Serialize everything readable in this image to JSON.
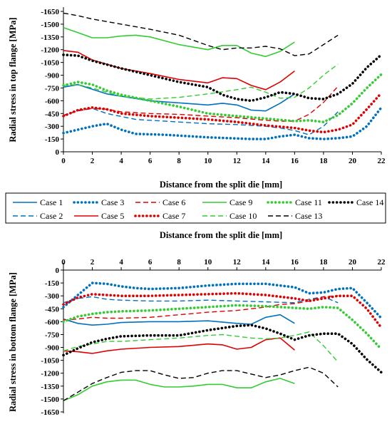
{
  "chart_data": [
    {
      "type": "line",
      "xlabel": "Distance from the split die [mm]",
      "ylabel": "Radial stress in top flange [MPa]",
      "xlim": [
        0,
        22
      ],
      "ylim": [
        0,
        -1650
      ],
      "xticks": [
        "0",
        "2",
        "4",
        "6",
        "8",
        "10",
        "12",
        "14",
        "16",
        "18",
        "20",
        "22"
      ],
      "yticks": [
        "0",
        "-150",
        "-300",
        "-450",
        "-600",
        "-750",
        "-900",
        "-1050",
        "-1200",
        "-1350",
        "-1500",
        "-1650"
      ],
      "series": [
        {
          "name": "Case 1",
          "color": "#0070c0",
          "dash": "solid",
          "x": [
            0,
            1,
            3,
            6,
            10,
            11,
            12,
            13,
            14,
            15,
            16
          ],
          "y": [
            -760,
            -790,
            -680,
            -600,
            -550,
            -570,
            -550,
            -490,
            -480,
            -570,
            -680
          ]
        },
        {
          "name": "Case 2",
          "color": "#0070c0",
          "dash": "dashed",
          "x": [
            0,
            1,
            2,
            3,
            5,
            8,
            10,
            12,
            14,
            15,
            16,
            17,
            18,
            19
          ],
          "y": [
            -420,
            -490,
            -510,
            -450,
            -380,
            -350,
            -330,
            -320,
            -300,
            -280,
            -250,
            -200,
            -300,
            -470
          ]
        },
        {
          "name": "Case 3",
          "color": "#0070c0",
          "dash": "dotted",
          "x": [
            0,
            1,
            2,
            3,
            4,
            5,
            7,
            10,
            13,
            14,
            15,
            16,
            17,
            18,
            19,
            20,
            21,
            22
          ],
          "y": [
            -220,
            -260,
            -300,
            -330,
            -260,
            -210,
            -200,
            -170,
            -150,
            -150,
            -180,
            -200,
            -160,
            -150,
            -160,
            -180,
            -300,
            -520
          ]
        },
        {
          "name": "Case 5",
          "color": "#e00000",
          "dash": "solid",
          "x": [
            0,
            1,
            2,
            4,
            6,
            8,
            9,
            10,
            11,
            12,
            13,
            14,
            15,
            16
          ],
          "y": [
            -1190,
            -1170,
            -1080,
            -980,
            -920,
            -850,
            -830,
            -810,
            -870,
            -860,
            -780,
            -730,
            -820,
            -950
          ]
        },
        {
          "name": "Case 6",
          "color": "#e00000",
          "dash": "dashed",
          "x": [
            0,
            1,
            2,
            3,
            4,
            6,
            8,
            10,
            12,
            14,
            15,
            16,
            17,
            18,
            19
          ],
          "y": [
            -430,
            -480,
            -510,
            -500,
            -470,
            -450,
            -440,
            -420,
            -400,
            -370,
            -360,
            -360,
            -440,
            -580,
            -770
          ]
        },
        {
          "name": "Case 7",
          "color": "#e00000",
          "dash": "dotted",
          "x": [
            0,
            1,
            2,
            3,
            4,
            6,
            8,
            10,
            12,
            14,
            16,
            17,
            18,
            19,
            20,
            21,
            22
          ],
          "y": [
            -420,
            -490,
            -520,
            -500,
            -450,
            -420,
            -400,
            -380,
            -350,
            -310,
            -280,
            -250,
            -230,
            -260,
            -320,
            -500,
            -690
          ]
        },
        {
          "name": "Case 9",
          "color": "#33cc33",
          "dash": "solid",
          "x": [
            0,
            1,
            2,
            3,
            4,
            5,
            6,
            8,
            10,
            11,
            12,
            13,
            14,
            15,
            16
          ],
          "y": [
            -1460,
            -1400,
            -1340,
            -1340,
            -1360,
            -1370,
            -1350,
            -1260,
            -1200,
            -1250,
            -1250,
            -1160,
            -1120,
            -1180,
            -1290
          ]
        },
        {
          "name": "Case 10",
          "color": "#33cc33",
          "dash": "dashed",
          "x": [
            0,
            1,
            2,
            3,
            4,
            6,
            8,
            10,
            12,
            13,
            14,
            15,
            16,
            17,
            18,
            19
          ],
          "y": [
            -780,
            -790,
            -750,
            -700,
            -650,
            -620,
            -640,
            -680,
            -730,
            -760,
            -700,
            -630,
            -640,
            -750,
            -900,
            -1030
          ]
        },
        {
          "name": "Case 11",
          "color": "#33cc33",
          "dash": "dotted",
          "x": [
            0,
            1,
            2,
            3,
            4,
            6,
            8,
            10,
            12,
            14,
            16,
            17,
            18,
            19,
            20,
            21,
            22
          ],
          "y": [
            -780,
            -820,
            -790,
            -720,
            -670,
            -600,
            -530,
            -450,
            -420,
            -390,
            -360,
            -370,
            -350,
            -430,
            -570,
            -750,
            -910
          ]
        },
        {
          "name": "Case 13",
          "color": "#000000",
          "dash": "dashed",
          "x": [
            0,
            1,
            2,
            4,
            6,
            8,
            10,
            11,
            12,
            13,
            14,
            15,
            16,
            17,
            18,
            19
          ],
          "y": [
            -1630,
            -1600,
            -1560,
            -1500,
            -1440,
            -1370,
            -1250,
            -1200,
            -1220,
            -1220,
            -1240,
            -1210,
            -1130,
            -1150,
            -1260,
            -1370
          ]
        },
        {
          "name": "Case 14",
          "color": "#000000",
          "dash": "dotted",
          "x": [
            0,
            1,
            2,
            4,
            6,
            8,
            10,
            11,
            12,
            13,
            14,
            15,
            16,
            17,
            18,
            19,
            20,
            21,
            22
          ],
          "y": [
            -1140,
            -1130,
            -1070,
            -980,
            -900,
            -820,
            -760,
            -670,
            -620,
            -600,
            -640,
            -700,
            -680,
            -630,
            -620,
            -680,
            -800,
            -990,
            -1140
          ]
        }
      ]
    },
    {
      "type": "line",
      "xlabel": "Distance from the split die [mm]",
      "ylabel": "Radial stress in bottom flange [MPa]",
      "xlim": [
        0,
        22
      ],
      "ylim": [
        0,
        -1650
      ],
      "xticks": [
        "0",
        "2",
        "4",
        "6",
        "8",
        "10",
        "12",
        "14",
        "16",
        "18",
        "20",
        "22"
      ],
      "yticks": [
        "0",
        "-150",
        "-300",
        "-450",
        "-600",
        "-750",
        "-900",
        "-1050",
        "-1200",
        "-1350",
        "-1500",
        "-1650"
      ],
      "series": [
        {
          "name": "Case 1",
          "color": "#0070c0",
          "dash": "solid",
          "x": [
            0,
            1,
            2,
            3,
            4,
            6,
            8,
            10,
            12,
            13,
            14,
            15,
            16
          ],
          "y": [
            -570,
            -620,
            -640,
            -630,
            -610,
            -600,
            -600,
            -590,
            -620,
            -630,
            -550,
            -520,
            -620
          ]
        },
        {
          "name": "Case 2",
          "color": "#0070c0",
          "dash": "dashed",
          "x": [
            0,
            1,
            2,
            3,
            4,
            6,
            8,
            10,
            12,
            14,
            16,
            17,
            18,
            19
          ],
          "y": [
            -380,
            -330,
            -310,
            -340,
            -350,
            -360,
            -360,
            -350,
            -360,
            -370,
            -380,
            -340,
            -310,
            -380
          ]
        },
        {
          "name": "Case 3",
          "color": "#0070c0",
          "dash": "dotted",
          "x": [
            0,
            1,
            2,
            3,
            4,
            5,
            6,
            8,
            10,
            12,
            14,
            16,
            17,
            18,
            19,
            20,
            21,
            22
          ],
          "y": [
            -430,
            -290,
            -150,
            -160,
            -190,
            -210,
            -220,
            -210,
            -180,
            -160,
            -160,
            -200,
            -270,
            -260,
            -220,
            -210,
            -380,
            -560
          ]
        },
        {
          "name": "Case 5",
          "color": "#e00000",
          "dash": "solid",
          "x": [
            0,
            1,
            2,
            3,
            4,
            6,
            8,
            10,
            11,
            12,
            13,
            14,
            15,
            16
          ],
          "y": [
            -940,
            -950,
            -970,
            -940,
            -920,
            -900,
            -890,
            -860,
            -870,
            -920,
            -900,
            -810,
            -790,
            -930
          ]
        },
        {
          "name": "Case 6",
          "color": "#e00000",
          "dash": "dashed",
          "x": [
            0,
            1,
            2,
            3,
            4,
            6,
            8,
            10,
            12,
            14,
            15,
            16,
            17,
            18,
            19
          ],
          "y": [
            -580,
            -570,
            -550,
            -560,
            -560,
            -550,
            -520,
            -490,
            -470,
            -430,
            -400,
            -390,
            -360,
            -310,
            -300
          ]
        },
        {
          "name": "Case 7",
          "color": "#e00000",
          "dash": "dotted",
          "x": [
            0,
            1,
            2,
            3,
            4,
            6,
            8,
            10,
            12,
            14,
            16,
            17,
            18,
            19,
            20,
            21,
            22
          ],
          "y": [
            -400,
            -320,
            -280,
            -290,
            -300,
            -300,
            -290,
            -280,
            -270,
            -290,
            -330,
            -360,
            -330,
            -300,
            -300,
            -450,
            -670
          ]
        },
        {
          "name": "Case 9",
          "color": "#33cc33",
          "dash": "solid",
          "x": [
            0,
            1,
            2,
            3,
            4,
            5,
            6,
            7,
            8,
            9,
            10,
            11,
            12,
            13,
            14,
            15,
            16
          ],
          "y": [
            -1520,
            -1450,
            -1350,
            -1300,
            -1280,
            -1280,
            -1330,
            -1360,
            -1360,
            -1350,
            -1330,
            -1330,
            -1370,
            -1370,
            -1300,
            -1260,
            -1320
          ]
        },
        {
          "name": "Case 10",
          "color": "#33cc33",
          "dash": "dashed",
          "x": [
            0,
            1,
            2,
            3,
            4,
            6,
            8,
            10,
            11,
            12,
            13,
            14,
            15,
            16,
            17,
            18,
            19
          ],
          "y": [
            -940,
            -890,
            -860,
            -830,
            -830,
            -810,
            -790,
            -760,
            -750,
            -770,
            -790,
            -800,
            -790,
            -760,
            -720,
            -880,
            -1070
          ]
        },
        {
          "name": "Case 11",
          "color": "#33cc33",
          "dash": "dotted",
          "x": [
            0,
            1,
            2,
            3,
            4,
            6,
            8,
            10,
            12,
            14,
            16,
            17,
            18,
            19,
            20,
            21,
            22
          ],
          "y": [
            -600,
            -540,
            -510,
            -490,
            -480,
            -470,
            -450,
            -430,
            -410,
            -420,
            -440,
            -450,
            -430,
            -440,
            -580,
            -740,
            -920
          ]
        },
        {
          "name": "Case 13",
          "color": "#000000",
          "dash": "dashed",
          "x": [
            0,
            1,
            2,
            3,
            4,
            5,
            6,
            7,
            8,
            9,
            10,
            11,
            12,
            13,
            14,
            15,
            16,
            17,
            18,
            19
          ],
          "y": [
            -1520,
            -1420,
            -1320,
            -1250,
            -1190,
            -1170,
            -1170,
            -1220,
            -1260,
            -1250,
            -1200,
            -1170,
            -1170,
            -1210,
            -1250,
            -1220,
            -1170,
            -1130,
            -1200,
            -1360
          ]
        },
        {
          "name": "Case 14",
          "color": "#000000",
          "dash": "dotted",
          "x": [
            0,
            1,
            2,
            3,
            4,
            6,
            8,
            10,
            12,
            13,
            14,
            15,
            16,
            17,
            18,
            19,
            20,
            21,
            22
          ],
          "y": [
            -990,
            -910,
            -840,
            -800,
            -770,
            -760,
            -760,
            -700,
            -650,
            -640,
            -680,
            -740,
            -810,
            -760,
            -740,
            -740,
            -860,
            -1040,
            -1190
          ]
        }
      ]
    }
  ],
  "legend": [
    {
      "name": "Case 1",
      "color": "#0070c0",
      "dash": "solid"
    },
    {
      "name": "Case 3",
      "color": "#0070c0",
      "dash": "dotted"
    },
    {
      "name": "Case 6",
      "color": "#e00000",
      "dash": "dashed"
    },
    {
      "name": "Case 9",
      "color": "#33cc33",
      "dash": "solid"
    },
    {
      "name": "Case 11",
      "color": "#33cc33",
      "dash": "dotted"
    },
    {
      "name": "Case 14",
      "color": "#000000",
      "dash": "dotted"
    },
    {
      "name": "Case 2",
      "color": "#0070c0",
      "dash": "dashed"
    },
    {
      "name": "Case 5",
      "color": "#e00000",
      "dash": "solid"
    },
    {
      "name": "Case 7",
      "color": "#e00000",
      "dash": "dotted"
    },
    {
      "name": "Case 10",
      "color": "#33cc33",
      "dash": "dashed"
    },
    {
      "name": "Case 13",
      "color": "#000000",
      "dash": "dashed"
    }
  ]
}
